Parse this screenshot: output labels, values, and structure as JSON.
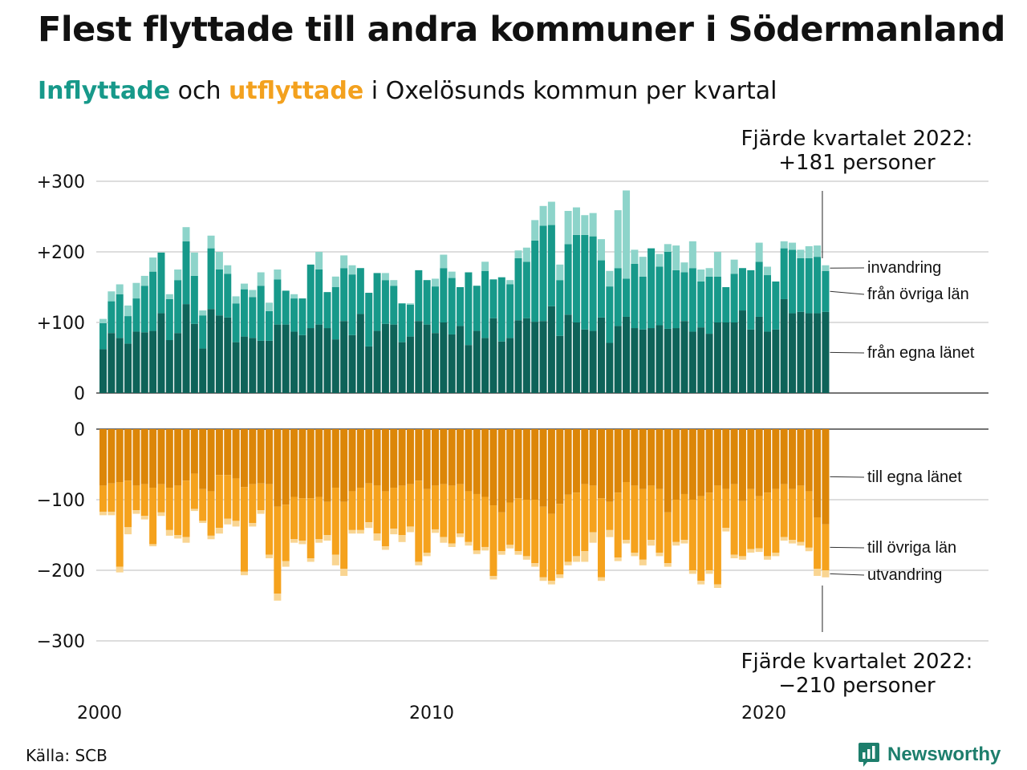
{
  "title": "Flest flyttade till andra kommuner i Södermanland",
  "subtitle": {
    "part1": "Inflyttade",
    "part2": " och ",
    "part3": "utflyttade",
    "part4": " i Oxelösunds kommun per kvartal"
  },
  "source": "Källa: SCB",
  "brand": "Newsworthy",
  "colors": {
    "in_own": "#0e6359",
    "in_other": "#17998a",
    "in_imm": "#8dd4ca",
    "out_own": "#dc8608",
    "out_other": "#f5a21d",
    "out_emig": "#f9d592",
    "grid": "#dddddd",
    "brand": "#1d7e6c"
  },
  "chart_data": {
    "type": "bar",
    "stacked": true,
    "x_start": "2000 Q1",
    "x_end": "2022 Q4",
    "x_ticks": [
      {
        "label": "2000",
        "year": 2000
      },
      {
        "label": "2010",
        "year": 2010
      },
      {
        "label": "2020",
        "year": 2020
      }
    ],
    "top_panel": {
      "ylim": [
        0,
        300
      ],
      "y_ticks": [
        {
          "v": 0,
          "label": "0"
        },
        {
          "v": 100,
          "label": "+100"
        },
        {
          "v": 200,
          "label": "+200"
        },
        {
          "v": 300,
          "label": "+300"
        }
      ],
      "series": [
        {
          "name": "från egna länet",
          "values": [
            62,
            85,
            78,
            70,
            87,
            86,
            88,
            113,
            75,
            85,
            126,
            98,
            63,
            119,
            110,
            107,
            72,
            80,
            78,
            74,
            74,
            97,
            97,
            87,
            82,
            92,
            97,
            92,
            76,
            102,
            82,
            112,
            66,
            88,
            98,
            97,
            72,
            80,
            102,
            97,
            85,
            100,
            83,
            95,
            68,
            88,
            78,
            106,
            73,
            78,
            103,
            106,
            101,
            102,
            123,
            81,
            111,
            100,
            90,
            88,
            107,
            71,
            95,
            108,
            92,
            90,
            92,
            96,
            91,
            92,
            102,
            87,
            93,
            84,
            100,
            100,
            100,
            117,
            90,
            108,
            87,
            90,
            133,
            113,
            115,
            113,
            113,
            115
          ]
        },
        {
          "name": "från övriga län",
          "values": [
            37,
            45,
            62,
            39,
            47,
            66,
            84,
            86,
            58,
            75,
            89,
            68,
            47,
            86,
            65,
            62,
            55,
            67,
            58,
            78,
            42,
            64,
            48,
            47,
            52,
            90,
            78,
            51,
            74,
            75,
            86,
            65,
            76,
            82,
            62,
            55,
            55,
            45,
            72,
            63,
            66,
            77,
            80,
            55,
            103,
            64,
            95,
            55,
            91,
            76,
            88,
            80,
            115,
            135,
            115,
            79,
            100,
            124,
            134,
            134,
            81,
            80,
            82,
            54,
            91,
            75,
            113,
            83,
            109,
            82,
            69,
            90,
            65,
            81,
            65,
            50,
            69,
            60,
            84,
            78,
            80,
            68,
            72,
            90,
            76,
            78,
            80,
            58
          ]
        },
        {
          "name": "invandring",
          "values": [
            6,
            14,
            14,
            15,
            22,
            14,
            20,
            0,
            7,
            15,
            20,
            33,
            7,
            18,
            25,
            12,
            10,
            8,
            10,
            19,
            12,
            14,
            0,
            6,
            0,
            0,
            25,
            0,
            15,
            18,
            13,
            0,
            0,
            0,
            10,
            8,
            0,
            2,
            0,
            0,
            11,
            19,
            9,
            0,
            0,
            0,
            13,
            0,
            0,
            6,
            11,
            20,
            29,
            28,
            33,
            22,
            47,
            39,
            28,
            33,
            30,
            22,
            82,
            125,
            20,
            28,
            0,
            18,
            11,
            35,
            14,
            38,
            17,
            12,
            35,
            0,
            20,
            0,
            0,
            27,
            12,
            0,
            10,
            10,
            12,
            17,
            16,
            8
          ]
        }
      ]
    },
    "bottom_panel": {
      "ylim": [
        -300,
        0
      ],
      "y_ticks": [
        {
          "v": 0,
          "label": "0"
        },
        {
          "v": -100,
          "label": "−100"
        },
        {
          "v": -200,
          "label": "−200"
        },
        {
          "v": -300,
          "label": "−300"
        }
      ],
      "series": [
        {
          "name": "till egna länet",
          "values": [
            -80,
            -77,
            -75,
            -73,
            -80,
            -78,
            -83,
            -78,
            -83,
            -80,
            -73,
            -63,
            -85,
            -88,
            -65,
            -65,
            -70,
            -82,
            -78,
            -77,
            -78,
            -110,
            -107,
            -96,
            -98,
            -98,
            -96,
            -103,
            -83,
            -103,
            -88,
            -83,
            -77,
            -80,
            -88,
            -83,
            -80,
            -78,
            -73,
            -85,
            -80,
            -78,
            -80,
            -78,
            -88,
            -92,
            -96,
            -108,
            -118,
            -104,
            -98,
            -100,
            -100,
            -110,
            -120,
            -106,
            -93,
            -90,
            -78,
            -80,
            -98,
            -103,
            -90,
            -75,
            -80,
            -85,
            -80,
            -85,
            -118,
            -100,
            -92,
            -100,
            -95,
            -90,
            -80,
            -85,
            -78,
            -102,
            -85,
            -95,
            -90,
            -85,
            -78,
            -85,
            -80,
            -88,
            -125,
            -135
          ]
        },
        {
          "name": "till övriga län",
          "values": [
            -37,
            -40,
            -120,
            -66,
            -35,
            -45,
            -80,
            -40,
            -60,
            -70,
            -80,
            -50,
            -45,
            -63,
            -75,
            -62,
            -60,
            -120,
            -55,
            -38,
            -100,
            -123,
            -80,
            -60,
            -60,
            -85,
            -60,
            -47,
            -95,
            -95,
            -55,
            -60,
            -55,
            -68,
            -78,
            -58,
            -70,
            -60,
            -115,
            -90,
            -62,
            -75,
            -82,
            -70,
            -72,
            -80,
            -71,
            -100,
            -55,
            -60,
            -75,
            -80,
            -90,
            -100,
            -95,
            -100,
            -95,
            -90,
            -95,
            -66,
            -112,
            -40,
            -92,
            -82,
            -95,
            -100,
            -77,
            -90,
            -72,
            -60,
            -65,
            -100,
            -120,
            -110,
            -140,
            -55,
            -100,
            -78,
            -85,
            -74,
            -90,
            -90,
            -75,
            -72,
            -80,
            -80,
            -73,
            -65
          ]
        },
        {
          "name": "utvandring",
          "values": [
            -5,
            -5,
            -8,
            -10,
            -5,
            -5,
            -3,
            -5,
            -8,
            -5,
            -8,
            -3,
            -3,
            -5,
            -8,
            -8,
            -8,
            -5,
            -5,
            -5,
            -5,
            -10,
            -8,
            -5,
            -5,
            -5,
            -5,
            -8,
            -15,
            -10,
            -5,
            -5,
            -8,
            -10,
            -5,
            -8,
            -10,
            -8,
            -5,
            -5,
            -5,
            -8,
            -5,
            -5,
            -5,
            -5,
            -5,
            -5,
            -5,
            -5,
            -5,
            -5,
            -5,
            -5,
            -5,
            -5,
            -5,
            -8,
            -15,
            -15,
            -5,
            -10,
            -5,
            -5,
            -5,
            -8,
            -8,
            -5,
            -5,
            -5,
            -5,
            -5,
            -5,
            -5,
            -5,
            -5,
            -5,
            -5,
            -5,
            -5,
            -5,
            -5,
            -5,
            -5,
            -5,
            -5,
            -10,
            -10
          ]
        }
      ]
    },
    "annotations": {
      "top": [
        "Fjärde kvartalet 2022:",
        "+181 personer"
      ],
      "bottom": [
        "Fjärde kvartalet 2022:",
        "−210 personer"
      ]
    }
  }
}
